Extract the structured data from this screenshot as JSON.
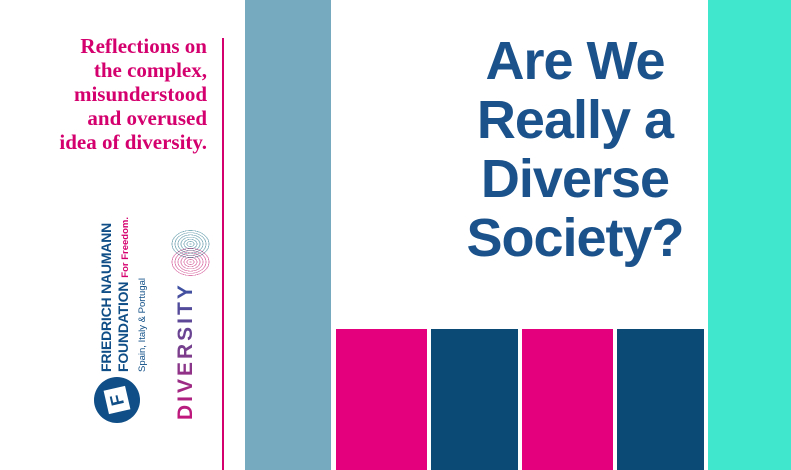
{
  "poster": {
    "intro": {
      "lines": [
        "Reflections on",
        "the complex,",
        "misunderstood",
        "and overused",
        "idea of diversity."
      ]
    },
    "title": {
      "lines": [
        "Are We",
        "Really a",
        "Diverse",
        "Society?"
      ]
    },
    "fnf_logo": {
      "name_line1": "FRIEDRICH NAUMANN",
      "name_line2": "FOUNDATION",
      "tagline": "For Freedom.",
      "region": "Spain, Italy & Portugal",
      "monogram": "F"
    },
    "diversity": {
      "label": "DIVERSITY"
    },
    "colors": {
      "pink_text": "#d4006e",
      "bar_pink": "#e4007d",
      "title_navy": "#1b528b",
      "bar_navy": "#0c4a76",
      "fnf_navy": "#0f4e86",
      "blue_gray_column": "#76aabf",
      "teal_column": "#40e7cc",
      "diversity_gradient_start": "#c4157b",
      "diversity_gradient_end": "#3a52a3"
    }
  }
}
